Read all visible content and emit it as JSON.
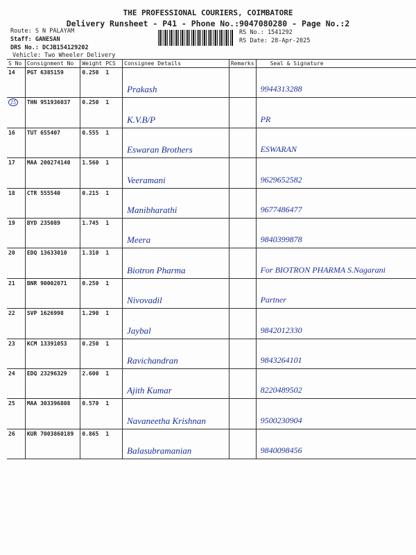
{
  "header": {
    "title": "THE PROFESSIONAL COURIERS, COIMBATORE",
    "subtitle": "Delivery Runsheet - P41 - Phone No.:9047080280 - Page No.:2",
    "route": "Route: S N PALAYAM",
    "staff": "Staff: GANESAN",
    "drs": "DRS No.: DCJB154129202",
    "vehicle": "Vehicle: Two Wheeler Delivery",
    "rs_no": "RS No.: 1541292",
    "rs_date": "RS Date: 28-Apr-2025"
  },
  "columns": [
    "S No",
    "Consignment No",
    "Weight",
    "PCS",
    "Consignee Details",
    "Remarks",
    "Seal & Signature"
  ],
  "rows": [
    {
      "sno": "14",
      "cn": "PGT 6385159",
      "wt": "0.250",
      "pcs": "1",
      "consignee": "Prakash",
      "sig": "9944313288"
    },
    {
      "sno": "15",
      "cn": "THN 951936037",
      "wt": "0.250",
      "pcs": "1",
      "consignee": "K.V.B/P",
      "sig": "PR"
    },
    {
      "sno": "16",
      "cn": "TUT 655407",
      "wt": "0.555",
      "pcs": "1",
      "consignee": "Eswaran Brothers",
      "sig": "ESWARAN"
    },
    {
      "sno": "17",
      "cn": "MAA 200274140",
      "wt": "1.560",
      "pcs": "1",
      "consignee": "Veeramani",
      "sig": "9629652582"
    },
    {
      "sno": "18",
      "cn": "CTR 555540",
      "wt": "0.215",
      "pcs": "1",
      "consignee": "Manibharathi",
      "sig": "9677486477"
    },
    {
      "sno": "19",
      "cn": "BYD 235089",
      "wt": "1.745",
      "pcs": "1",
      "consignee": "Meera",
      "sig": "9840399878"
    },
    {
      "sno": "20",
      "cn": "EDQ 13633010",
      "wt": "1.310",
      "pcs": "1",
      "consignee": "Biotron Pharma",
      "sig": "For BIOTRON PHARMA  S.Nagarani"
    },
    {
      "sno": "21",
      "cn": "BNR 90002071",
      "wt": "0.250",
      "pcs": "1",
      "consignee": "Nivovadil",
      "sig": "Partner"
    },
    {
      "sno": "22",
      "cn": "SVP 1626998",
      "wt": "1.290",
      "pcs": "1",
      "consignee": "Jaybal",
      "sig": "9842012330"
    },
    {
      "sno": "23",
      "cn": "KCM 13391053",
      "wt": "0.250",
      "pcs": "1",
      "consignee": "Ravichandran",
      "sig": "9843264101"
    },
    {
      "sno": "24",
      "cn": "EDQ 23296329",
      "wt": "2.600",
      "pcs": "1",
      "consignee": "Ajith Kumar",
      "sig": "8220489502"
    },
    {
      "sno": "25",
      "cn": "MAA 303396808",
      "wt": "0.570",
      "pcs": "1",
      "consignee": "Navaneetha Krishnan",
      "sig": "9500230904"
    },
    {
      "sno": "26",
      "cn": "KUR 7003860189",
      "wt": "0.865",
      "pcs": "1",
      "consignee": "Balasubramanian",
      "sig": "9840098456"
    }
  ]
}
